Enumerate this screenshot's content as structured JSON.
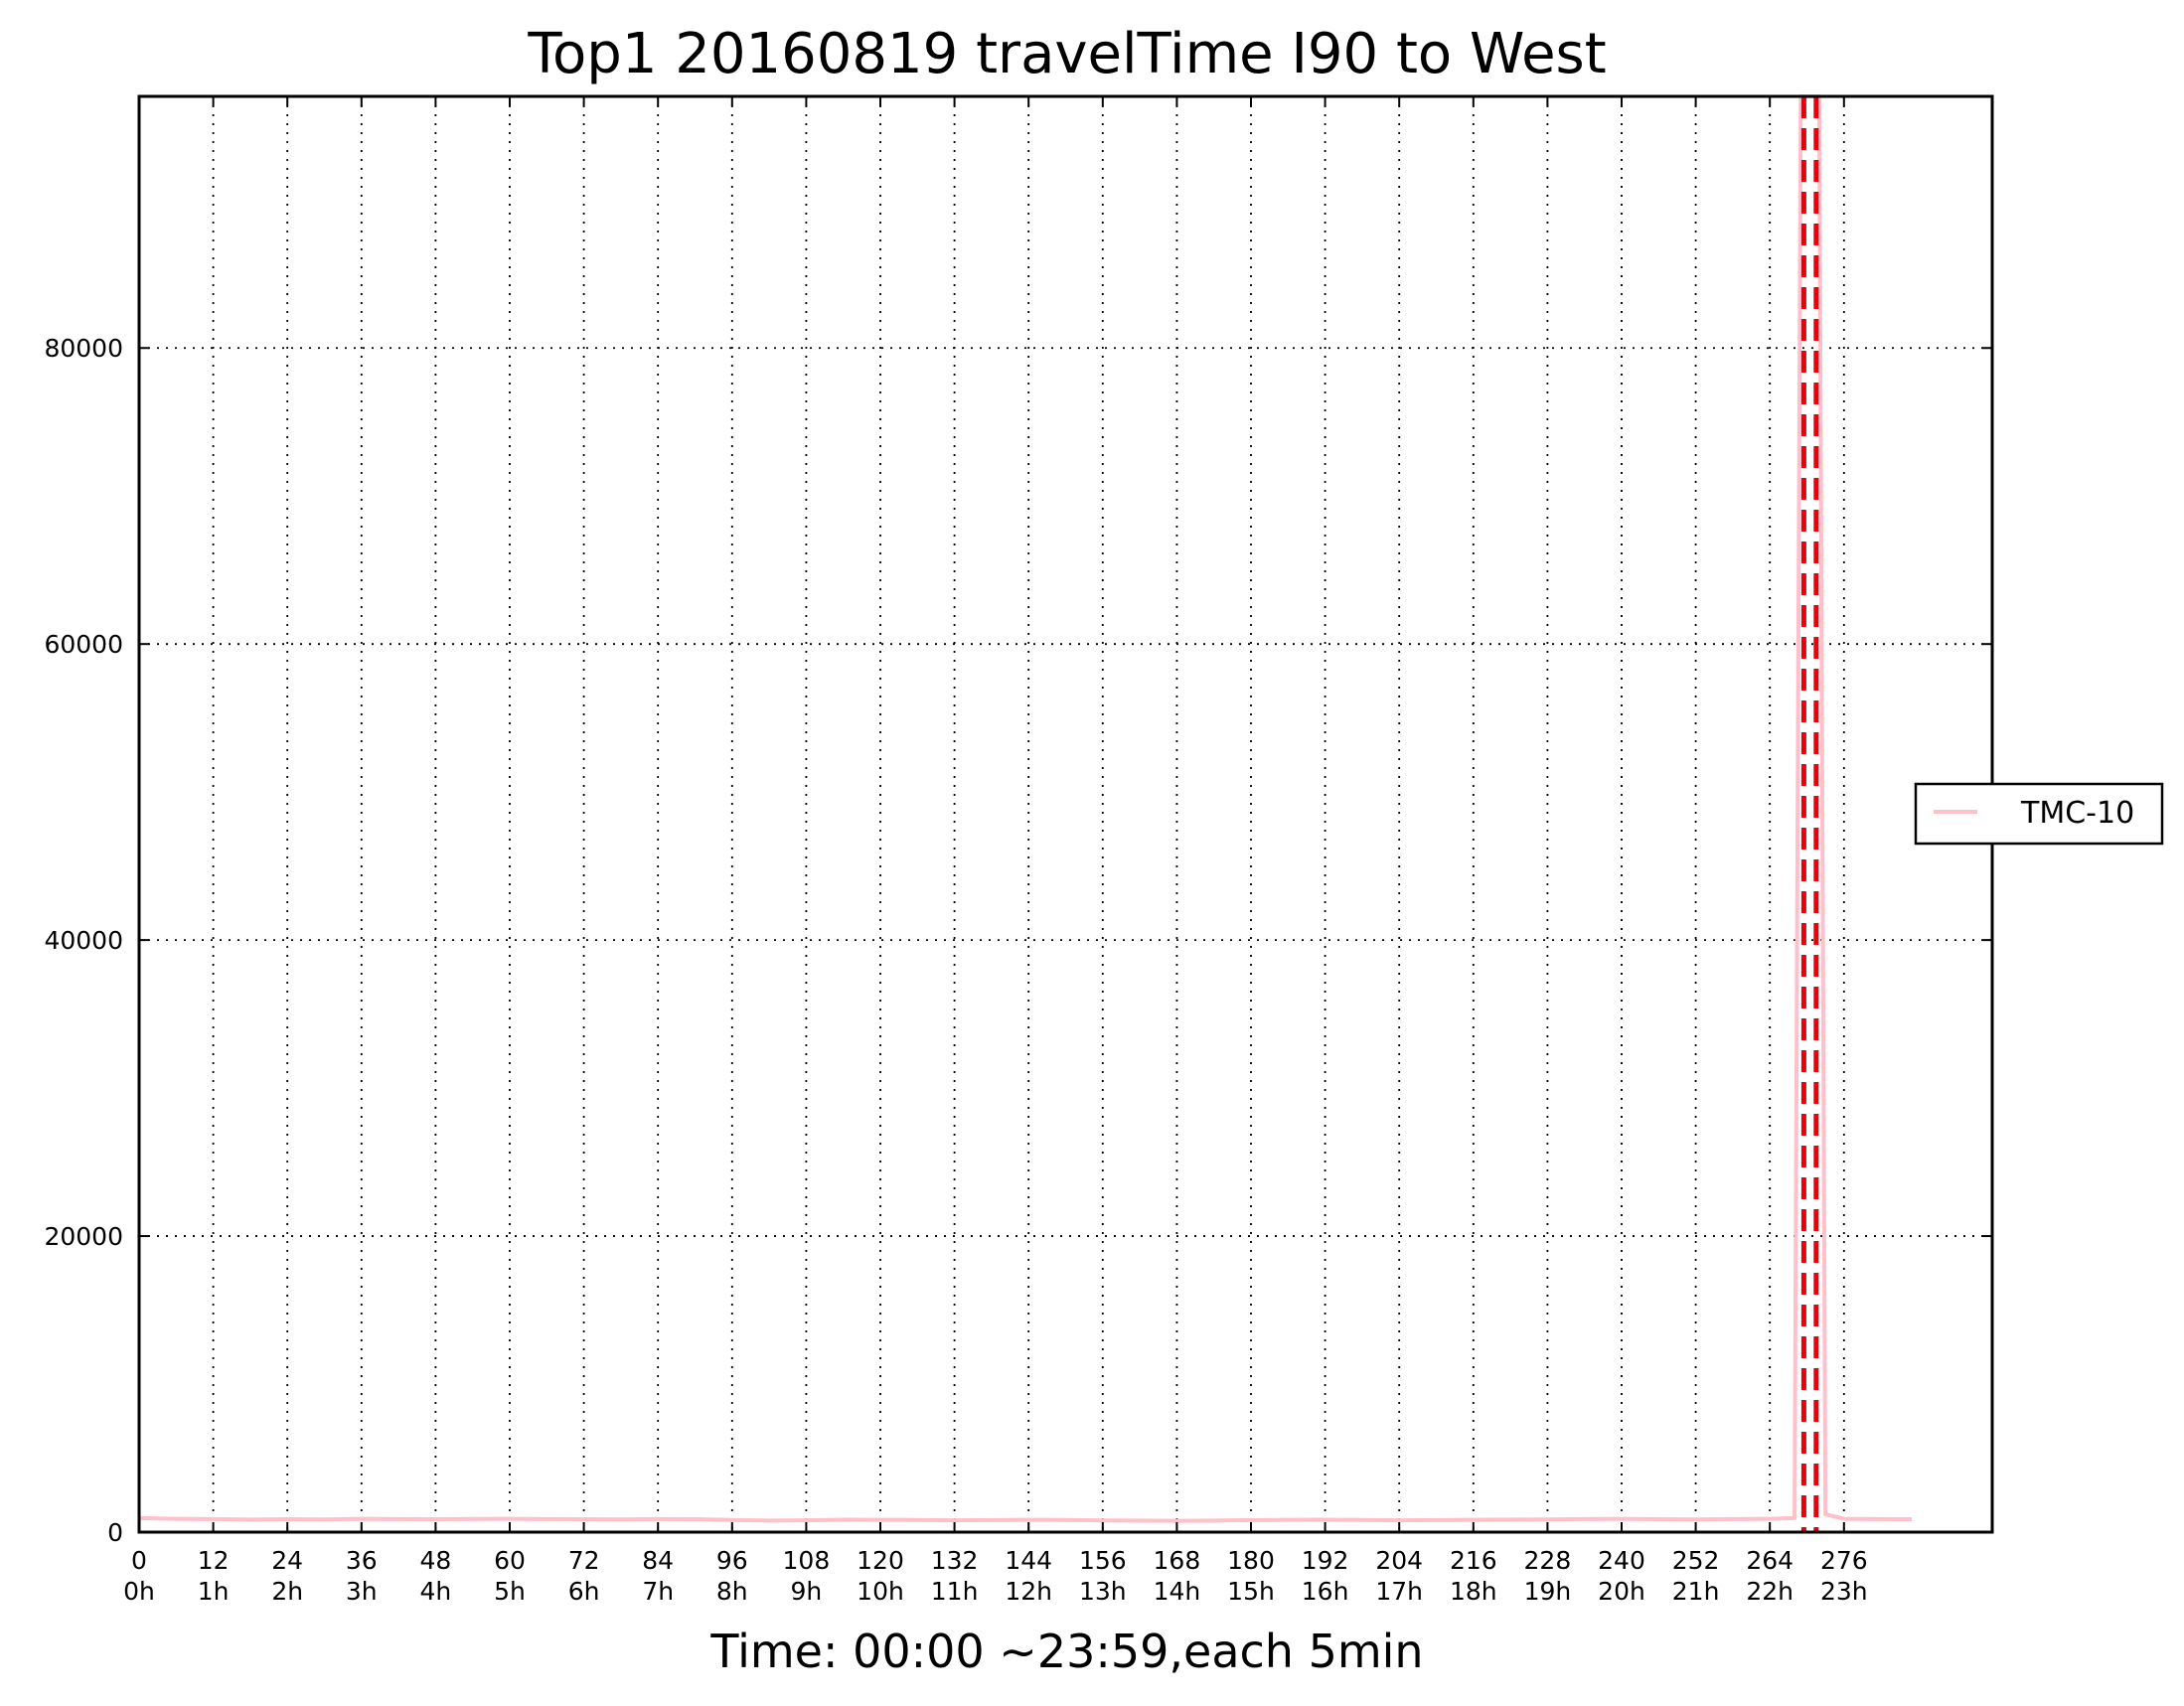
{
  "chart_data": {
    "type": "line",
    "title": "Top1 20160819 travelTime I90 to West",
    "xlabel": "Time: 00:00 ~23:59,each 5min",
    "ylabel": "",
    "xlim": [
      0,
      300
    ],
    "ylim": [
      0,
      97000
    ],
    "grid": true,
    "legend_position": "right",
    "x_ticks": [
      0,
      12,
      24,
      36,
      48,
      60,
      72,
      84,
      96,
      108,
      120,
      132,
      144,
      156,
      168,
      180,
      192,
      204,
      216,
      228,
      240,
      252,
      264,
      276
    ],
    "x_tick_labels_hours": [
      "0h",
      "1h",
      "2h",
      "3h",
      "4h",
      "5h",
      "6h",
      "7h",
      "8h",
      "9h",
      "10h",
      "11h",
      "12h",
      "13h",
      "14h",
      "15h",
      "16h",
      "17h",
      "18h",
      "19h",
      "20h",
      "21h",
      "22h",
      "23h"
    ],
    "y_ticks": [
      0,
      20000,
      40000,
      60000,
      80000
    ],
    "series": [
      {
        "name": "TMC-10",
        "color": "#ffc0cb",
        "x": [
          0,
          6,
          12,
          18,
          24,
          30,
          36,
          42,
          48,
          54,
          60,
          66,
          72,
          78,
          84,
          90,
          96,
          102,
          108,
          114,
          120,
          126,
          132,
          138,
          144,
          150,
          156,
          162,
          168,
          174,
          180,
          186,
          192,
          198,
          204,
          210,
          216,
          222,
          228,
          234,
          240,
          246,
          252,
          258,
          264,
          268,
          269,
          270,
          271,
          272,
          273,
          276,
          282,
          287
        ],
        "values": [
          950,
          900,
          880,
          850,
          870,
          860,
          900,
          880,
          870,
          890,
          900,
          880,
          870,
          860,
          880,
          870,
          820,
          780,
          800,
          840,
          830,
          820,
          800,
          810,
          830,
          820,
          790,
          780,
          760,
          780,
          810,
          830,
          840,
          820,
          800,
          810,
          830,
          850,
          860,
          880,
          900,
          870,
          860,
          880,
          900,
          950,
          97000,
          97000,
          97000,
          97000,
          1200,
          900,
          880,
          870
        ]
      }
    ],
    "vertical_markers": {
      "style": "dashed",
      "color": "#e8000b",
      "x": [
        269.5,
        271.5
      ]
    }
  }
}
